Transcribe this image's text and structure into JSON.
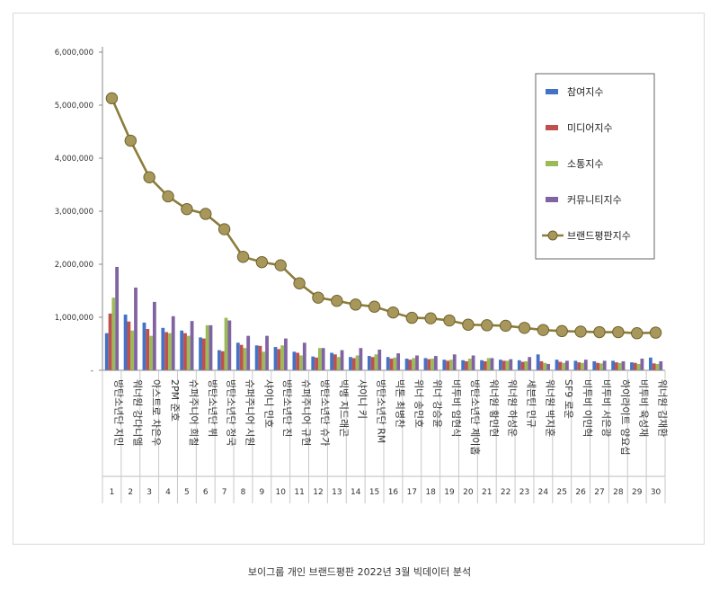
{
  "caption": "보이그룹 개인 브랜드평판 2022년 3월 빅데이터 분석",
  "chart_data": {
    "type": "bar",
    "title": "",
    "xlabel": "",
    "ylabel": "",
    "ylim": [
      0,
      6000000
    ],
    "yticks": [
      0,
      1000000,
      2000000,
      3000000,
      4000000,
      5000000,
      6000000
    ],
    "ytick_labels": [
      "-",
      "1,000,000",
      "2,000,000",
      "3,000,000",
      "4,000,000",
      "5,000,000",
      "6,000,000"
    ],
    "legend_position": "right",
    "grid": false,
    "categories": [
      "방탄소년단 지민",
      "워너원 강다니엘",
      "아스트로 차은우",
      "2PM 준호",
      "슈퍼주니어 희철",
      "방탄소년단 뷔",
      "방탄소년단 정국",
      "슈퍼주니어 시원",
      "샤이니 민호",
      "방탄소년단 진",
      "슈퍼주니어 규현",
      "방탄소년단 슈가",
      "빅뱅 지드래곤",
      "샤이니 키",
      "방탄소년단 RM",
      "빅톤 최병찬",
      "위너 송민호",
      "위너 강승윤",
      "비투비 임현식",
      "방탄소년단 제이홉",
      "워너원 황민현",
      "워너원 하성운",
      "세븐틴 민규",
      "워너원 박지훈",
      "SF9 로운",
      "비투비 이민혁",
      "비투비 서은광",
      "하이라이트 양요섭",
      "비투비 육성재",
      "워너원 김재환"
    ],
    "ranks": [
      "1",
      "2",
      "3",
      "4",
      "5",
      "6",
      "7",
      "8",
      "9",
      "10",
      "11",
      "12",
      "13",
      "14",
      "15",
      "16",
      "17",
      "18",
      "19",
      "20",
      "21",
      "22",
      "23",
      "24",
      "25",
      "26",
      "27",
      "28",
      "29",
      "30"
    ],
    "series": [
      {
        "name": "참여지수",
        "kind": "bar",
        "color": "#4472c4",
        "values": [
          700000,
          1050000,
          900000,
          800000,
          750000,
          620000,
          380000,
          520000,
          470000,
          440000,
          350000,
          260000,
          330000,
          250000,
          270000,
          250000,
          220000,
          230000,
          200000,
          190000,
          190000,
          200000,
          190000,
          300000,
          200000,
          180000,
          170000,
          180000,
          150000,
          240000
        ]
      },
      {
        "name": "미디어지수",
        "kind": "bar",
        "color": "#c0504d",
        "values": [
          1070000,
          920000,
          780000,
          720000,
          700000,
          600000,
          360000,
          480000,
          460000,
          400000,
          330000,
          240000,
          300000,
          230000,
          250000,
          220000,
          200000,
          210000,
          180000,
          170000,
          170000,
          180000,
          160000,
          170000,
          160000,
          150000,
          140000,
          150000,
          140000,
          130000
        ]
      },
      {
        "name": "소통지수",
        "kind": "bar",
        "color": "#9bbb59",
        "values": [
          1370000,
          750000,
          650000,
          700000,
          650000,
          850000,
          990000,
          420000,
          350000,
          470000,
          280000,
          420000,
          250000,
          280000,
          300000,
          240000,
          230000,
          220000,
          200000,
          220000,
          230000,
          180000,
          170000,
          140000,
          140000,
          140000,
          130000,
          140000,
          120000,
          120000
        ]
      },
      {
        "name": "커뮤니티지수",
        "kind": "bar",
        "color": "#8064a2",
        "values": [
          1950000,
          1560000,
          1290000,
          1020000,
          930000,
          850000,
          940000,
          650000,
          650000,
          600000,
          520000,
          420000,
          380000,
          420000,
          390000,
          320000,
          280000,
          270000,
          300000,
          280000,
          230000,
          210000,
          250000,
          120000,
          180000,
          200000,
          180000,
          170000,
          220000,
          170000
        ]
      },
      {
        "name": "브랜드평판지수",
        "kind": "line",
        "color": "#8c7d3a",
        "values": [
          5130000,
          4330000,
          3640000,
          3280000,
          3040000,
          2950000,
          2660000,
          2140000,
          2040000,
          1980000,
          1640000,
          1370000,
          1310000,
          1240000,
          1200000,
          1090000,
          990000,
          980000,
          940000,
          860000,
          850000,
          840000,
          800000,
          760000,
          740000,
          730000,
          720000,
          720000,
          700000,
          710000
        ]
      }
    ]
  }
}
